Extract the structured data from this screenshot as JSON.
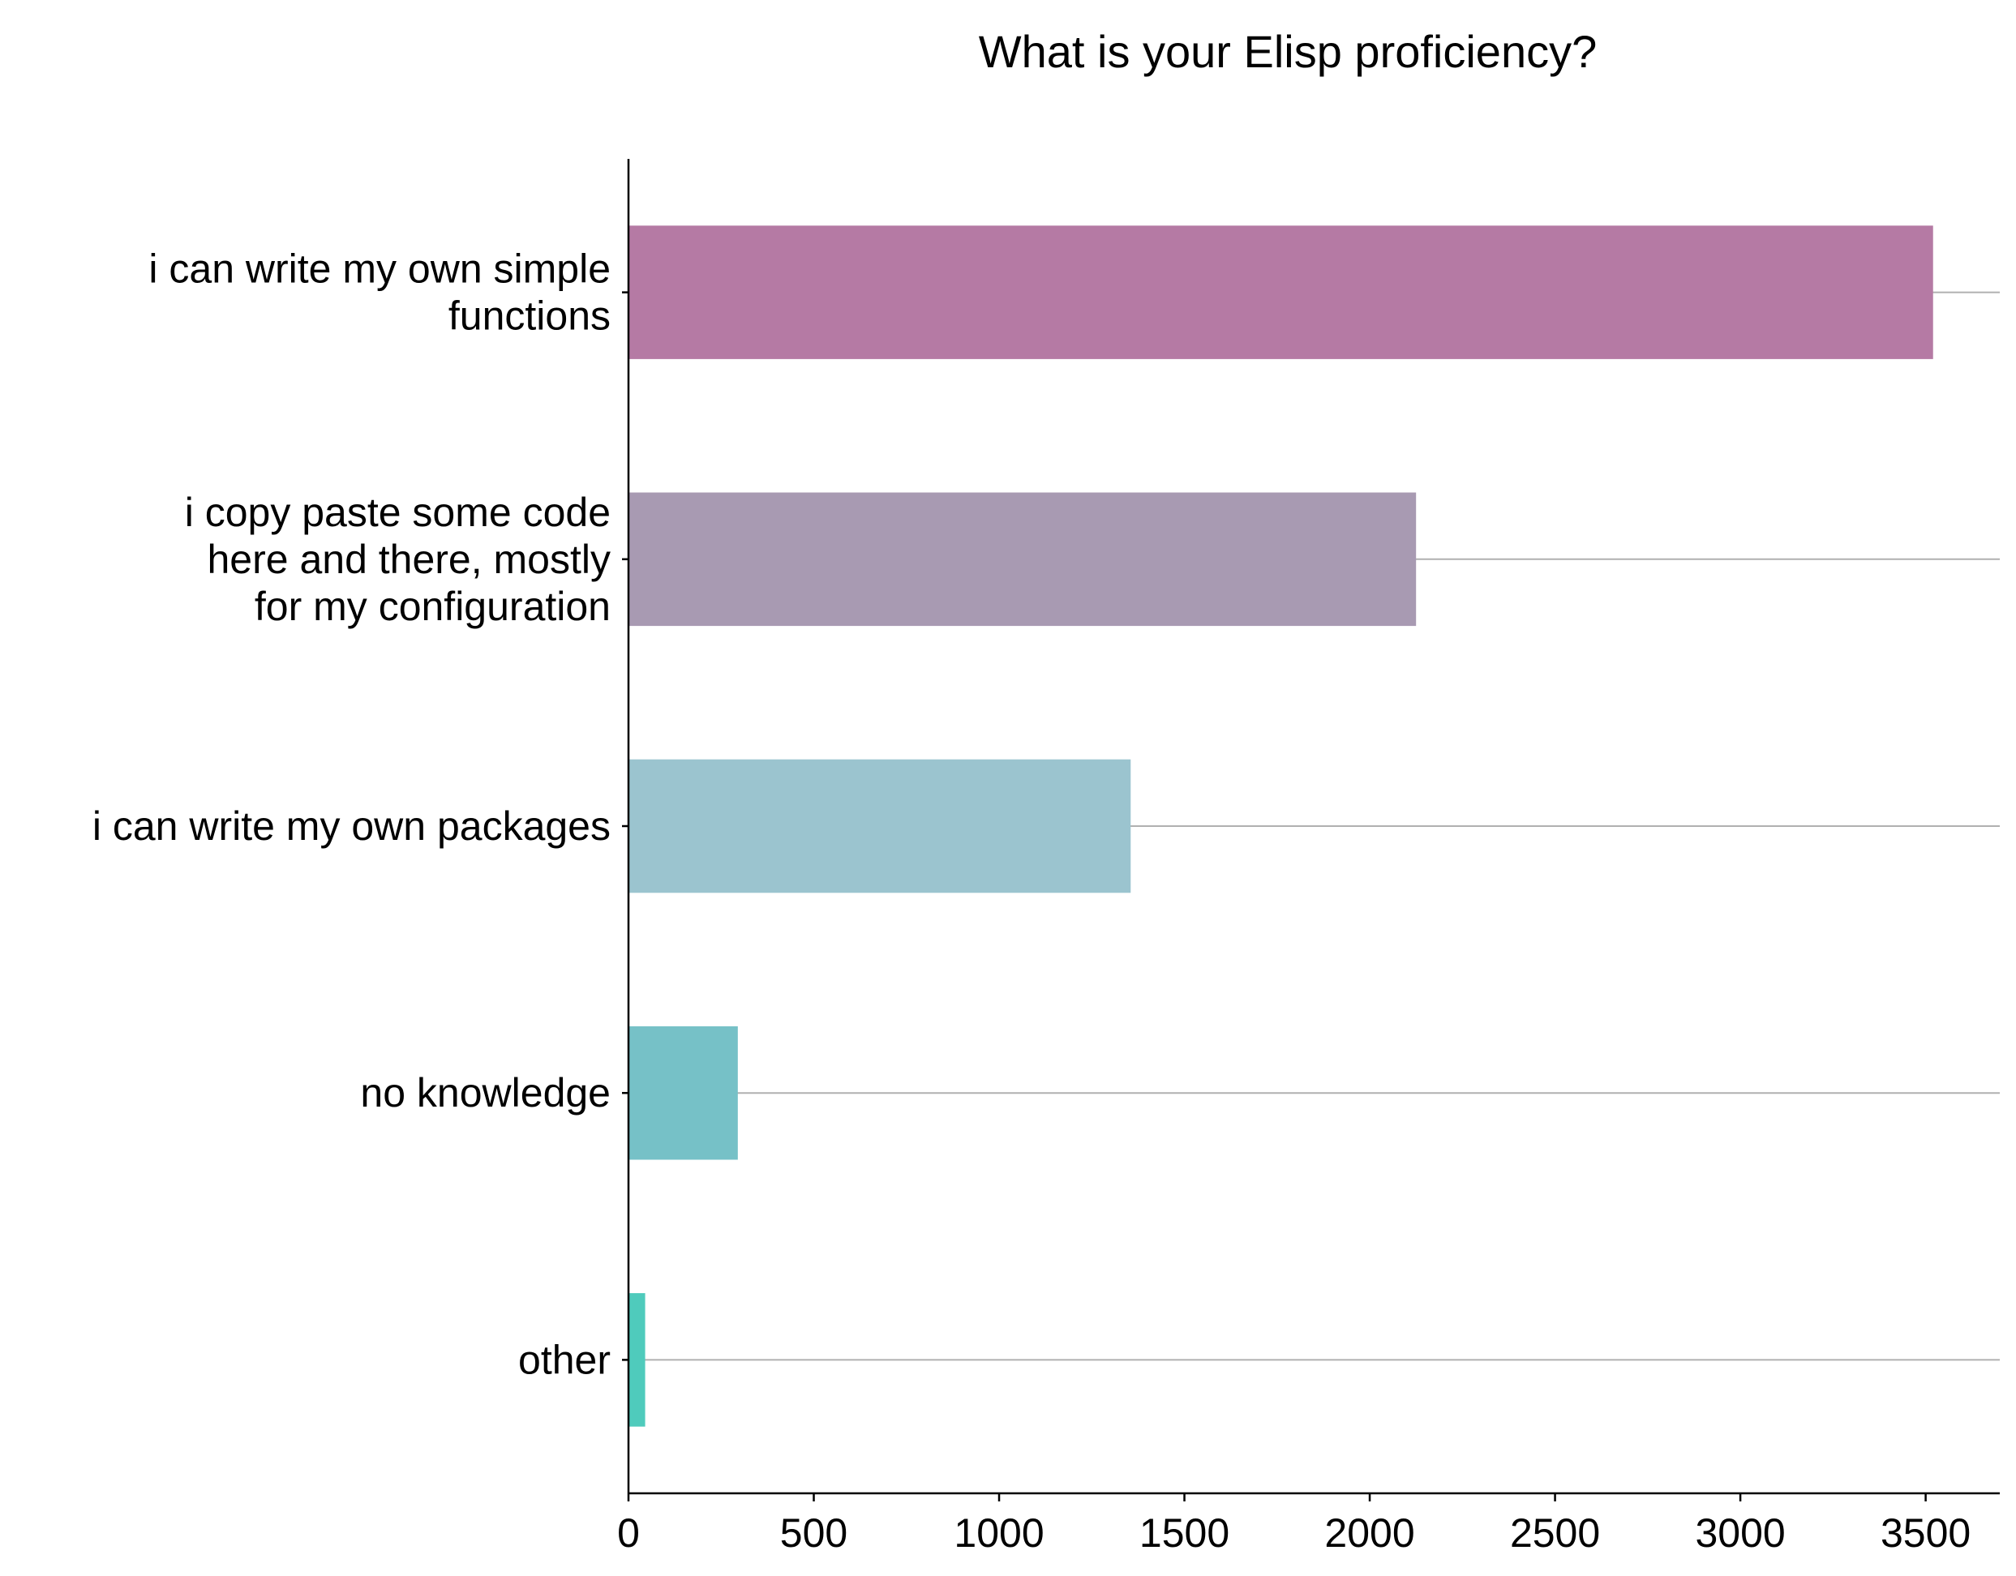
{
  "chart_data": {
    "type": "bar",
    "orientation": "horizontal",
    "title": "What is your Elisp proficiency?",
    "xlabel": "",
    "ylabel": "",
    "categories": [
      [
        "i can write my own simple",
        "functions"
      ],
      [
        "i copy paste some code",
        "here and there, mostly",
        "for my configuration"
      ],
      [
        "i can write my own packages"
      ],
      [
        "no knowledge"
      ],
      [
        "other"
      ]
    ],
    "values": [
      3520,
      2125,
      1355,
      295,
      45
    ],
    "colors": [
      "#b57aa4",
      "#a89ab2",
      "#9bc4cf",
      "#76c1c7",
      "#4fcbbc"
    ],
    "xlim": [
      0,
      3700
    ],
    "xticks": [
      0,
      500,
      1000,
      1500,
      2000,
      2500,
      3000,
      3500
    ],
    "grid": "horizontal",
    "legend": "none"
  }
}
